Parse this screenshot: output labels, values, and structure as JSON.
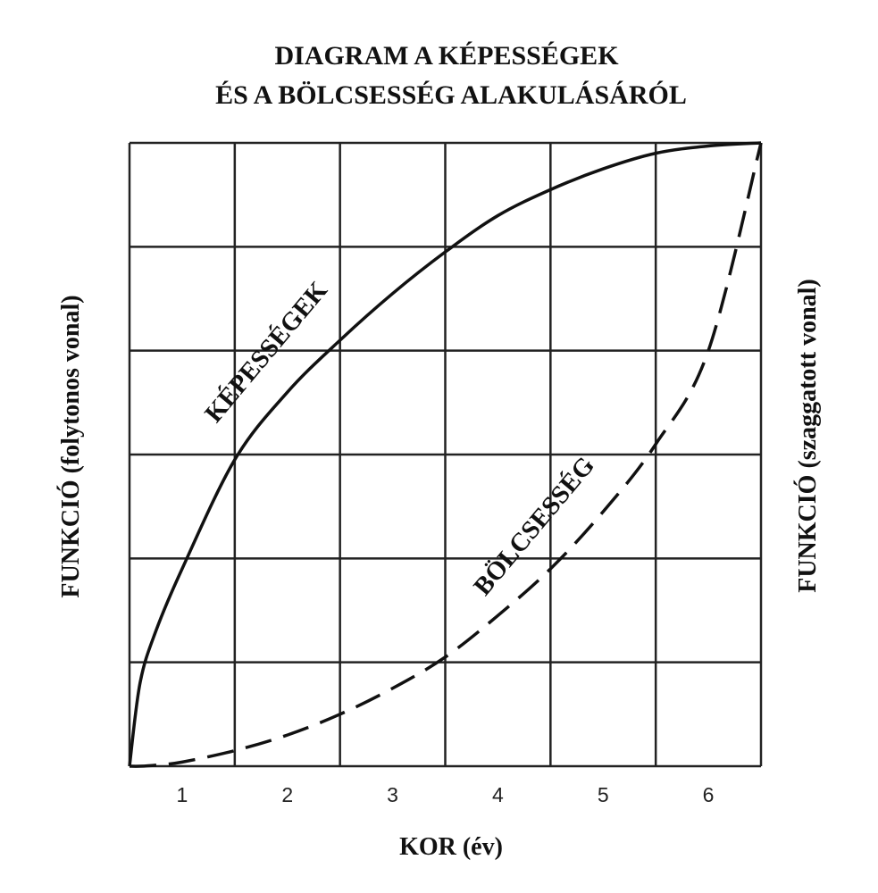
{
  "chart_data": {
    "type": "line",
    "title": [
      "DIAGRAM A KÉPESSÉGEK",
      "ÉS A BÖLCSESSÉG ALAKULÁSÁRÓL"
    ],
    "x_label": "KOR (év)",
    "y_label": "FUNKCIÓ (folytonos vonal)",
    "y2_label": "FUNKCIÓ (szaggatott vonal)",
    "xlim": [
      0.5,
      6.5
    ],
    "xticks": [
      1,
      2,
      3,
      4,
      5,
      6
    ],
    "xgrid": [
      0.5,
      1.5,
      2.5,
      3.5,
      4.5,
      5.5,
      6.5
    ],
    "ylim": [
      0,
      6
    ],
    "ygrid": [
      0,
      1,
      2,
      3,
      4,
      5,
      6
    ],
    "x": [
      0.5,
      0.6,
      0.75,
      1,
      1.5,
      2,
      2.5,
      3,
      3.5,
      4,
      4.5,
      5,
      5.5,
      6,
      6.5
    ],
    "series": [
      {
        "name": "KÉPESSÉGEK",
        "color": "#111111",
        "style": "solid",
        "values": [
          0,
          0.8,
          1.3,
          1.9,
          2.95,
          3.6,
          4.1,
          4.55,
          4.95,
          5.3,
          5.55,
          5.75,
          5.9,
          5.97,
          6
        ]
      },
      {
        "name": "BÖLCSESSÉG",
        "color": "#111111",
        "style": "dashed",
        "values": [
          0,
          0,
          0.01,
          0.04,
          0.15,
          0.3,
          0.5,
          0.75,
          1.05,
          1.45,
          1.9,
          2.45,
          3.1,
          4.0,
          6
        ]
      }
    ]
  }
}
